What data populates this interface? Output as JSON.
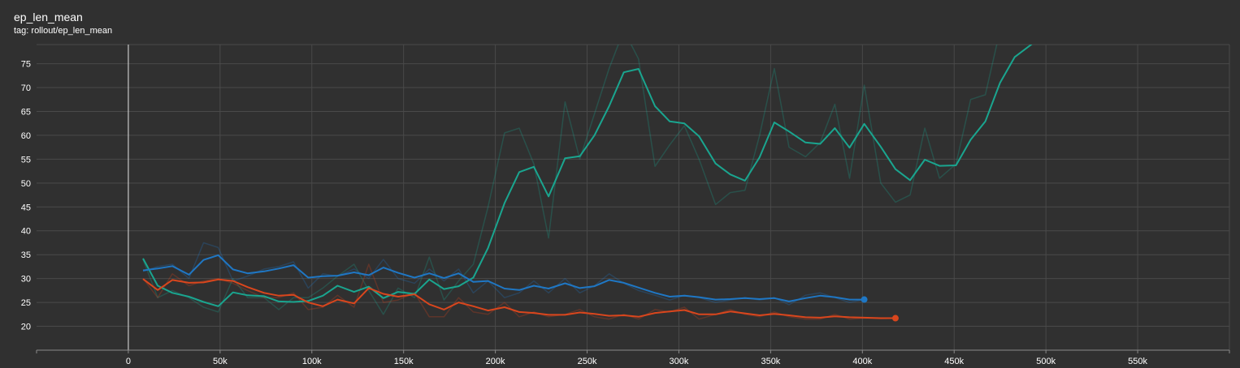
{
  "header": {
    "title": "ep_len_mean",
    "subtitle": "tag: rollout/ep_len_mean"
  },
  "colors": {
    "background": "#303030",
    "grid": "#4a4a4a",
    "axis": "#8a8a8a",
    "zero_line": "#c8c8c8"
  },
  "chart_data": {
    "type": "line",
    "title": "ep_len_mean",
    "subtitle": "tag: rollout/ep_len_mean",
    "xlabel": "",
    "ylabel": "",
    "xlim": [
      -50000,
      600000
    ],
    "ylim": [
      15,
      79
    ],
    "grid": true,
    "x_ticks": [
      0,
      50000,
      100000,
      150000,
      200000,
      250000,
      300000,
      350000,
      400000,
      450000,
      500000,
      550000
    ],
    "x_tick_labels": [
      "0",
      "50k",
      "100k",
      "150k",
      "200k",
      "250k",
      "300k",
      "350k",
      "400k",
      "450k",
      "500k",
      "550k"
    ],
    "y_ticks": [
      20,
      25,
      30,
      35,
      40,
      45,
      50,
      55,
      60,
      65,
      70,
      75
    ],
    "y_tick_labels": [
      "20",
      "25",
      "30",
      "35",
      "40",
      "45",
      "50",
      "55",
      "60",
      "65",
      "70",
      "75"
    ],
    "series": [
      {
        "color": "#1aa58f",
        "raw_opacity": 0.28,
        "end_marker": false,
        "x": [
          8000,
          16000,
          24000,
          33000,
          41000,
          49000,
          57000,
          65000,
          74000,
          82000,
          90000,
          98000,
          106000,
          114000,
          123000,
          131000,
          139000,
          147000,
          156000,
          164000,
          172000,
          180000,
          188000,
          196000,
          205000,
          213000,
          221000,
          229000,
          238000,
          246000,
          254000,
          262000,
          270000,
          278000,
          287000,
          295000,
          303000,
          311000,
          320000,
          328000,
          336000,
          344000,
          352000,
          360000,
          369000,
          377000,
          385000,
          393000,
          401000,
          410000,
          418000,
          426000,
          434000,
          442000,
          451000,
          459000,
          467000,
          475000,
          483000,
          492000,
          500000
        ],
        "smoothed": [
          34.2,
          28.5,
          27.0,
          26.2,
          25.1,
          24.2,
          27.1,
          26.5,
          26.3,
          25.2,
          25.1,
          25.3,
          26.4,
          28.5,
          27.2,
          28.3,
          25.9,
          27.2,
          26.8,
          29.8,
          27.8,
          28.4,
          30.2,
          36.4,
          45.8,
          52.3,
          53.4,
          47.2,
          55.2,
          55.6,
          60.0,
          66.1,
          73.2,
          73.9,
          66.1,
          62.9,
          62.5,
          59.8,
          54.1,
          51.8,
          50.5,
          55.4,
          62.7,
          60.8,
          58.5,
          58.2,
          61.5,
          57.4,
          62.4,
          57.6,
          52.9,
          50.6,
          54.9,
          53.6,
          53.7,
          59.1,
          62.9,
          71.0,
          76.4,
          79.0,
          82.0
        ],
        "raw": [
          34.0,
          26.0,
          27.5,
          26.0,
          24.0,
          23.0,
          30.0,
          26.0,
          26.0,
          23.5,
          26.0,
          26.0,
          28.0,
          30.5,
          33.0,
          27.5,
          22.5,
          28.0,
          26.0,
          34.5,
          25.5,
          29.5,
          33.0,
          45.0,
          60.5,
          61.5,
          54.0,
          38.5,
          67.0,
          55.0,
          64.5,
          74.0,
          82.0,
          76.0,
          53.5,
          58.0,
          62.0,
          55.0,
          45.5,
          48.0,
          48.5,
          60.0,
          74.0,
          57.5,
          55.5,
          58.5,
          66.5,
          51.0,
          70.5,
          50.0,
          46.0,
          47.5,
          61.5,
          51.0,
          54.0,
          67.5,
          68.5,
          82.0,
          86.0,
          86.0,
          86.0
        ]
      },
      {
        "color": "#1f77c4",
        "raw_opacity": 0.28,
        "end_marker": true,
        "x": [
          8000,
          16000,
          24000,
          33000,
          41000,
          49000,
          57000,
          65000,
          74000,
          82000,
          90000,
          98000,
          106000,
          114000,
          123000,
          131000,
          139000,
          147000,
          156000,
          164000,
          172000,
          180000,
          188000,
          196000,
          205000,
          213000,
          221000,
          229000,
          238000,
          246000,
          254000,
          262000,
          270000,
          278000,
          287000,
          295000,
          303000,
          311000,
          320000,
          328000,
          336000,
          344000,
          352000,
          360000,
          369000,
          377000,
          385000,
          393000,
          401000
        ],
        "smoothed": [
          31.7,
          32.1,
          32.6,
          30.8,
          33.9,
          34.9,
          31.9,
          31.1,
          31.5,
          32.1,
          32.8,
          30.2,
          30.5,
          30.6,
          31.3,
          30.7,
          32.3,
          31.2,
          30.2,
          31.1,
          30.1,
          31.1,
          29.3,
          29.5,
          27.9,
          27.6,
          28.5,
          27.9,
          29.0,
          28.0,
          28.4,
          29.7,
          29.1,
          28.1,
          27.0,
          26.2,
          26.4,
          26.1,
          25.6,
          25.7,
          25.9,
          25.7,
          25.9,
          25.2,
          25.9,
          26.4,
          26.1,
          25.6,
          25.6
        ],
        "raw": [
          31.5,
          32.5,
          33.0,
          30.0,
          37.5,
          36.5,
          29.5,
          30.5,
          32.0,
          32.5,
          33.5,
          28.0,
          31.0,
          30.5,
          32.0,
          30.0,
          34.0,
          30.0,
          29.0,
          32.0,
          29.5,
          32.0,
          27.0,
          29.5,
          26.0,
          27.0,
          29.5,
          27.0,
          30.0,
          27.0,
          28.5,
          31.0,
          29.0,
          27.5,
          26.5,
          25.5,
          26.5,
          26.0,
          25.0,
          25.5,
          26.0,
          25.5,
          26.0,
          24.5,
          26.5,
          27.0,
          26.0,
          25.0,
          25.6
        ]
      },
      {
        "color": "#d9461d",
        "raw_opacity": 0.28,
        "end_marker": true,
        "x": [
          8000,
          16000,
          24000,
          33000,
          41000,
          49000,
          57000,
          65000,
          74000,
          82000,
          90000,
          98000,
          106000,
          114000,
          123000,
          131000,
          139000,
          147000,
          156000,
          164000,
          172000,
          180000,
          188000,
          196000,
          205000,
          213000,
          221000,
          229000,
          238000,
          246000,
          254000,
          262000,
          270000,
          278000,
          287000,
          295000,
          303000,
          311000,
          320000,
          328000,
          336000,
          344000,
          352000,
          360000,
          369000,
          377000,
          385000,
          393000,
          401000,
          410000,
          418000
        ],
        "smoothed": [
          29.9,
          27.6,
          29.7,
          29.1,
          29.2,
          29.8,
          29.5,
          28.2,
          27.0,
          26.4,
          26.6,
          25.0,
          24.2,
          25.6,
          24.8,
          28.0,
          26.8,
          26.2,
          26.7,
          24.6,
          23.5,
          25.0,
          24.2,
          23.3,
          24.0,
          23.0,
          22.8,
          22.4,
          22.4,
          22.9,
          22.6,
          22.2,
          22.3,
          22.0,
          22.8,
          23.1,
          23.4,
          22.5,
          22.5,
          23.1,
          22.7,
          22.3,
          22.6,
          22.3,
          21.9,
          21.8,
          22.1,
          21.9,
          21.8,
          21.7,
          21.7
        ],
        "raw": [
          30.0,
          26.0,
          31.0,
          28.5,
          29.5,
          30.0,
          29.0,
          27.5,
          26.0,
          26.0,
          27.0,
          23.5,
          24.0,
          26.5,
          24.0,
          33.0,
          25.0,
          25.5,
          27.0,
          22.0,
          22.0,
          26.0,
          23.0,
          22.5,
          25.0,
          22.0,
          23.0,
          22.0,
          22.5,
          23.5,
          22.0,
          21.5,
          22.5,
          21.5,
          23.5,
          23.0,
          24.0,
          21.5,
          22.5,
          23.5,
          22.5,
          22.0,
          23.0,
          22.0,
          21.5,
          21.5,
          22.5,
          21.5,
          21.7,
          21.6,
          21.7
        ]
      }
    ]
  }
}
